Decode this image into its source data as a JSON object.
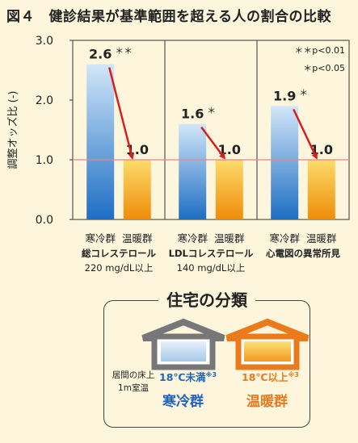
{
  "figure_title": "図４　健診結果が基準範囲を超える人の割合の比較",
  "chart_data": {
    "type": "bar",
    "ylabel": "調整オッズ比 (-)",
    "ylim": [
      0,
      3.0
    ],
    "yticks": [
      "0.0",
      "1.0",
      "2.0",
      "3.0"
    ],
    "reference_line": 1.0,
    "significance_legend": [
      "＊＊p<0.01",
      "＊p<0.05"
    ],
    "groups": [
      {
        "name": "総コレステロール",
        "subtitle": "220 mg/dL以上",
        "categories": [
          "寒冷群",
          "温暖群"
        ],
        "values": [
          2.6,
          1.0
        ],
        "value_labels": [
          "2.6",
          "1.0"
        ],
        "significance": "＊＊"
      },
      {
        "name": "LDLコレステロール",
        "subtitle": "140 mg/dL以上",
        "categories": [
          "寒冷群",
          "温暖群"
        ],
        "values": [
          1.6,
          1.0
        ],
        "value_labels": [
          "1.6",
          "1.0"
        ],
        "significance": "＊"
      },
      {
        "name": "心電図の異常所見",
        "subtitle": "",
        "categories": [
          "寒冷群",
          "温暖群"
        ],
        "values": [
          1.9,
          1.0
        ],
        "value_labels": [
          "1.9",
          "1.0"
        ],
        "significance": "＊"
      }
    ],
    "colors": {
      "cold_top": "#d2e6f8",
      "cold_bottom": "#1d6ec4",
      "warm_top": "#fbdc6a",
      "warm_bottom": "#f08c0a",
      "arrow": "#d81e1e",
      "ref_line": "#e3868c"
    }
  },
  "housing": {
    "title": "住宅の分類",
    "floor_desc_line1": "居間の床上",
    "floor_desc_line2": "1m室温",
    "cold_condition": "18℃未満",
    "warm_condition": "18℃以上",
    "note_mark": "※3",
    "cold_label": "寒冷群",
    "warm_label": "温暖群",
    "cold_color": "#1f64c0",
    "warm_color": "#ea7a1b"
  }
}
